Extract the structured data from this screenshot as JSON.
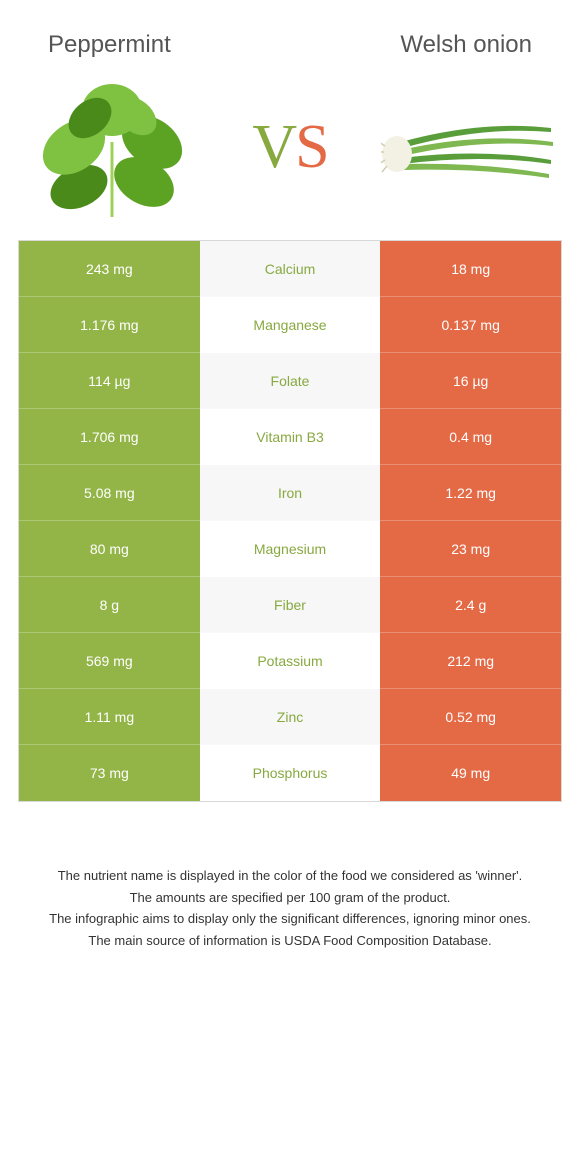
{
  "left_food": {
    "title": "Peppermint",
    "color": "#93b548"
  },
  "right_food": {
    "title": "Welsh onion",
    "color": "#e46a46"
  },
  "mid_bg_odd": "#f7f7f7",
  "nutrient_label_color": "#87a940",
  "rows": [
    {
      "nutrient": "Calcium",
      "left": "243 mg",
      "right": "18 mg"
    },
    {
      "nutrient": "Manganese",
      "left": "1.176 mg",
      "right": "0.137 mg"
    },
    {
      "nutrient": "Folate",
      "left": "114 µg",
      "right": "16 µg"
    },
    {
      "nutrient": "Vitamin B3",
      "left": "1.706 mg",
      "right": "0.4 mg"
    },
    {
      "nutrient": "Iron",
      "left": "5.08 mg",
      "right": "1.22 mg"
    },
    {
      "nutrient": "Magnesium",
      "left": "80 mg",
      "right": "23 mg"
    },
    {
      "nutrient": "Fiber",
      "left": "8 g",
      "right": "2.4 g"
    },
    {
      "nutrient": "Potassium",
      "left": "569 mg",
      "right": "212 mg"
    },
    {
      "nutrient": "Zinc",
      "left": "1.11 mg",
      "right": "0.52 mg"
    },
    {
      "nutrient": "Phosphorus",
      "left": "73 mg",
      "right": "49 mg"
    }
  ],
  "footnotes": [
    "The nutrient name is displayed in the color of the food we considered as 'winner'.",
    "The amounts are specified per 100 gram of the product.",
    "The infographic aims to display only the significant differences, ignoring minor ones.",
    "The main source of information is USDA Food Composition Database."
  ]
}
